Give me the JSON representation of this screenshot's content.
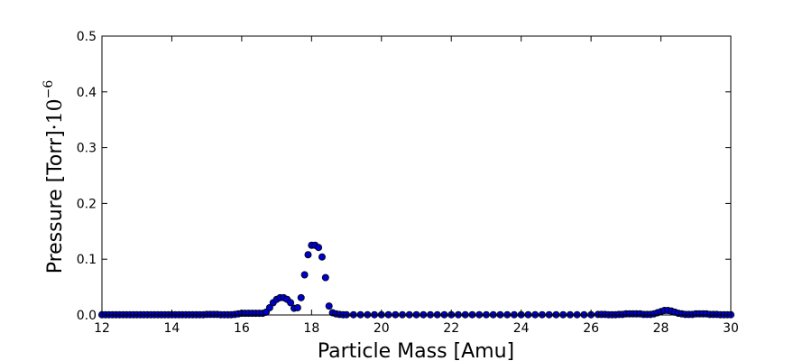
{
  "chart_data": {
    "type": "scatter",
    "xlabel": "Particle Mass [Amu]",
    "ylabel_main": "Pressure [Torr]",
    "ylabel_factor": "·10",
    "ylabel_exponent": "−6",
    "xlim": [
      12,
      30
    ],
    "ylim": [
      0,
      0.5
    ],
    "xticks": [
      12,
      14,
      16,
      18,
      20,
      22,
      24,
      26,
      28,
      30
    ],
    "yticks": [
      0.0,
      0.1,
      0.2,
      0.3,
      0.4,
      0.5
    ],
    "xtick_labels": [
      "12",
      "14",
      "16",
      "18",
      "20",
      "22",
      "24",
      "26",
      "28",
      "30"
    ],
    "ytick_labels": [
      "0.0",
      "0.1",
      "0.2",
      "0.3",
      "0.4",
      "0.5"
    ],
    "grid": false,
    "legend": "none",
    "marker_color": "#0000cc",
    "marker_edge": "#000000",
    "points": [
      [
        12.0,
        0.0005
      ],
      [
        12.1,
        0.0005
      ],
      [
        12.2,
        0.0005
      ],
      [
        12.3,
        0.0005
      ],
      [
        12.4,
        0.0005
      ],
      [
        12.5,
        0.0005
      ],
      [
        12.6,
        0.0005
      ],
      [
        12.7,
        0.0005
      ],
      [
        12.8,
        0.0005
      ],
      [
        12.9,
        0.0005
      ],
      [
        13.0,
        0.0005
      ],
      [
        13.1,
        0.0005
      ],
      [
        13.2,
        0.0005
      ],
      [
        13.3,
        0.0005
      ],
      [
        13.4,
        0.0005
      ],
      [
        13.5,
        0.0005
      ],
      [
        13.6,
        0.0005
      ],
      [
        13.7,
        0.0005
      ],
      [
        13.8,
        0.0005
      ],
      [
        13.9,
        0.0005
      ],
      [
        14.0,
        0.0005
      ],
      [
        14.1,
        0.0005
      ],
      [
        14.2,
        0.0005
      ],
      [
        14.3,
        0.0005
      ],
      [
        14.4,
        0.0005
      ],
      [
        14.5,
        0.0005
      ],
      [
        14.6,
        0.0005
      ],
      [
        14.7,
        0.0005
      ],
      [
        14.8,
        0.0005
      ],
      [
        14.9,
        0.0005
      ],
      [
        15.0,
        0.001
      ],
      [
        15.1,
        0.001
      ],
      [
        15.2,
        0.001
      ],
      [
        15.3,
        0.001
      ],
      [
        15.4,
        0.0005
      ],
      [
        15.5,
        0.0005
      ],
      [
        15.6,
        0.0005
      ],
      [
        15.7,
        0.0005
      ],
      [
        15.8,
        0.001
      ],
      [
        15.9,
        0.002
      ],
      [
        16.0,
        0.003
      ],
      [
        16.1,
        0.003
      ],
      [
        16.2,
        0.003
      ],
      [
        16.3,
        0.003
      ],
      [
        16.4,
        0.003
      ],
      [
        16.5,
        0.003
      ],
      [
        16.6,
        0.003
      ],
      [
        16.7,
        0.005
      ],
      [
        16.8,
        0.013
      ],
      [
        16.9,
        0.022
      ],
      [
        17.0,
        0.028
      ],
      [
        17.1,
        0.031
      ],
      [
        17.2,
        0.031
      ],
      [
        17.3,
        0.028
      ],
      [
        17.4,
        0.022
      ],
      [
        17.5,
        0.012
      ],
      [
        17.6,
        0.013
      ],
      [
        17.7,
        0.031
      ],
      [
        17.8,
        0.072
      ],
      [
        17.9,
        0.108
      ],
      [
        18.0,
        0.125
      ],
      [
        18.1,
        0.125
      ],
      [
        18.2,
        0.121
      ],
      [
        18.3,
        0.104
      ],
      [
        18.4,
        0.067
      ],
      [
        18.5,
        0.016
      ],
      [
        18.6,
        0.004
      ],
      [
        18.7,
        0.002
      ],
      [
        18.8,
        0.001
      ],
      [
        18.9,
        0.0005
      ],
      [
        19.0,
        0.0005
      ],
      [
        19.2,
        0.0005
      ],
      [
        19.4,
        0.0005
      ],
      [
        19.6,
        0.0005
      ],
      [
        19.8,
        0.0005
      ],
      [
        20.0,
        0.0005
      ],
      [
        20.2,
        0.0005
      ],
      [
        20.4,
        0.0005
      ],
      [
        20.6,
        0.0005
      ],
      [
        20.8,
        0.0005
      ],
      [
        21.0,
        0.0005
      ],
      [
        21.2,
        0.0005
      ],
      [
        21.4,
        0.0005
      ],
      [
        21.6,
        0.0005
      ],
      [
        21.8,
        0.0005
      ],
      [
        22.0,
        0.0005
      ],
      [
        22.2,
        0.0005
      ],
      [
        22.4,
        0.0005
      ],
      [
        22.6,
        0.0005
      ],
      [
        22.8,
        0.0005
      ],
      [
        23.0,
        0.0005
      ],
      [
        23.2,
        0.0005
      ],
      [
        23.4,
        0.0005
      ],
      [
        23.6,
        0.0005
      ],
      [
        23.8,
        0.0005
      ],
      [
        24.0,
        0.0005
      ],
      [
        24.2,
        0.0005
      ],
      [
        24.4,
        0.0005
      ],
      [
        24.6,
        0.0005
      ],
      [
        24.8,
        0.0005
      ],
      [
        25.0,
        0.0005
      ],
      [
        25.2,
        0.0005
      ],
      [
        25.4,
        0.0005
      ],
      [
        25.6,
        0.0005
      ],
      [
        25.8,
        0.0005
      ],
      [
        26.0,
        0.0005
      ],
      [
        26.2,
        0.001
      ],
      [
        26.3,
        0.001
      ],
      [
        26.4,
        0.001
      ],
      [
        26.5,
        0.0005
      ],
      [
        26.6,
        0.0005
      ],
      [
        26.7,
        0.0005
      ],
      [
        26.8,
        0.001
      ],
      [
        26.9,
        0.001
      ],
      [
        27.0,
        0.002
      ],
      [
        27.1,
        0.002
      ],
      [
        27.2,
        0.002
      ],
      [
        27.3,
        0.002
      ],
      [
        27.4,
        0.002
      ],
      [
        27.5,
        0.001
      ],
      [
        27.6,
        0.001
      ],
      [
        27.7,
        0.001
      ],
      [
        27.8,
        0.002
      ],
      [
        27.9,
        0.004
      ],
      [
        28.0,
        0.006
      ],
      [
        28.1,
        0.008
      ],
      [
        28.2,
        0.008
      ],
      [
        28.3,
        0.007
      ],
      [
        28.4,
        0.005
      ],
      [
        28.5,
        0.003
      ],
      [
        28.6,
        0.002
      ],
      [
        28.7,
        0.001
      ],
      [
        28.8,
        0.001
      ],
      [
        28.9,
        0.001
      ],
      [
        29.0,
        0.002
      ],
      [
        29.1,
        0.002
      ],
      [
        29.2,
        0.002
      ],
      [
        29.3,
        0.002
      ],
      [
        29.4,
        0.001
      ],
      [
        29.5,
        0.001
      ],
      [
        29.6,
        0.001
      ],
      [
        29.7,
        0.0005
      ],
      [
        29.8,
        0.0005
      ],
      [
        29.9,
        0.0005
      ],
      [
        30.0,
        0.0005
      ]
    ]
  }
}
